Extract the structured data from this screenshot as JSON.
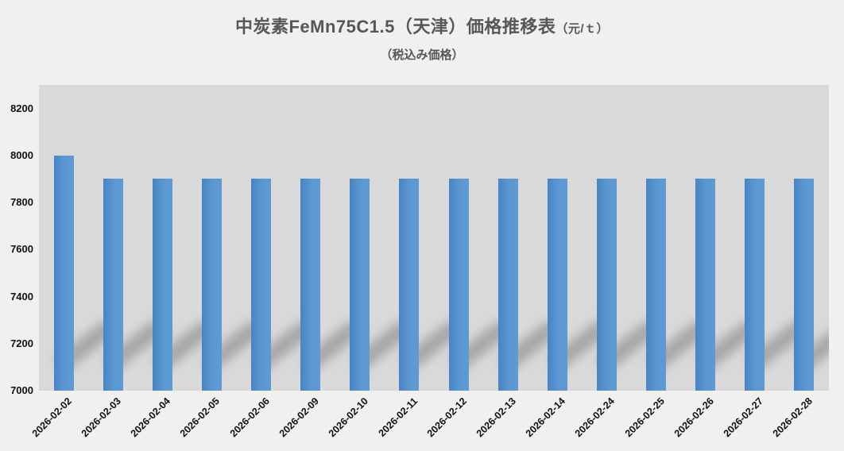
{
  "title": {
    "main": "中炭素FeMn75C1.5（天津）価格推移表",
    "unit": "（元/ｔ）",
    "subtitle": "（税込み価格）"
  },
  "colors": {
    "page_bg": "#f1f0ee",
    "plot_bg": "#d9d9d9",
    "bar_gradient_start": "#4784c5",
    "bar_gradient_end": "#5e9bd4",
    "title_text": "#575757",
    "axis_text": "#111111",
    "bar_shadow": "rgba(100,100,100,0.42)"
  },
  "chart_data": {
    "type": "bar",
    "title": "中炭素FeMn75C1.5（天津）価格推移表（元/ｔ）",
    "subtitle": "（税込み価格）",
    "xlabel": "",
    "ylabel": "",
    "categories": [
      "2026-02-02",
      "2026-02-03",
      "2026-02-04",
      "2026-02-05",
      "2026-02-06",
      "2026-02-09",
      "2026-02-10",
      "2026-02-11",
      "2026-02-12",
      "2026-02-13",
      "2026-02-14",
      "2026-02-24",
      "2026-02-25",
      "2026-02-26",
      "2026-02-27",
      "2026-02-28"
    ],
    "values": [
      8000,
      7900,
      7900,
      7900,
      7900,
      7900,
      7900,
      7900,
      7900,
      7900,
      7900,
      7900,
      7900,
      7900,
      7900,
      7900
    ],
    "ylim": [
      7000,
      8300
    ],
    "yticks": [
      7000,
      7200,
      7400,
      7600,
      7800,
      8000,
      8200
    ],
    "grid": false,
    "legend": false,
    "bar_effect": "perspective-shadow-upper-right"
  }
}
